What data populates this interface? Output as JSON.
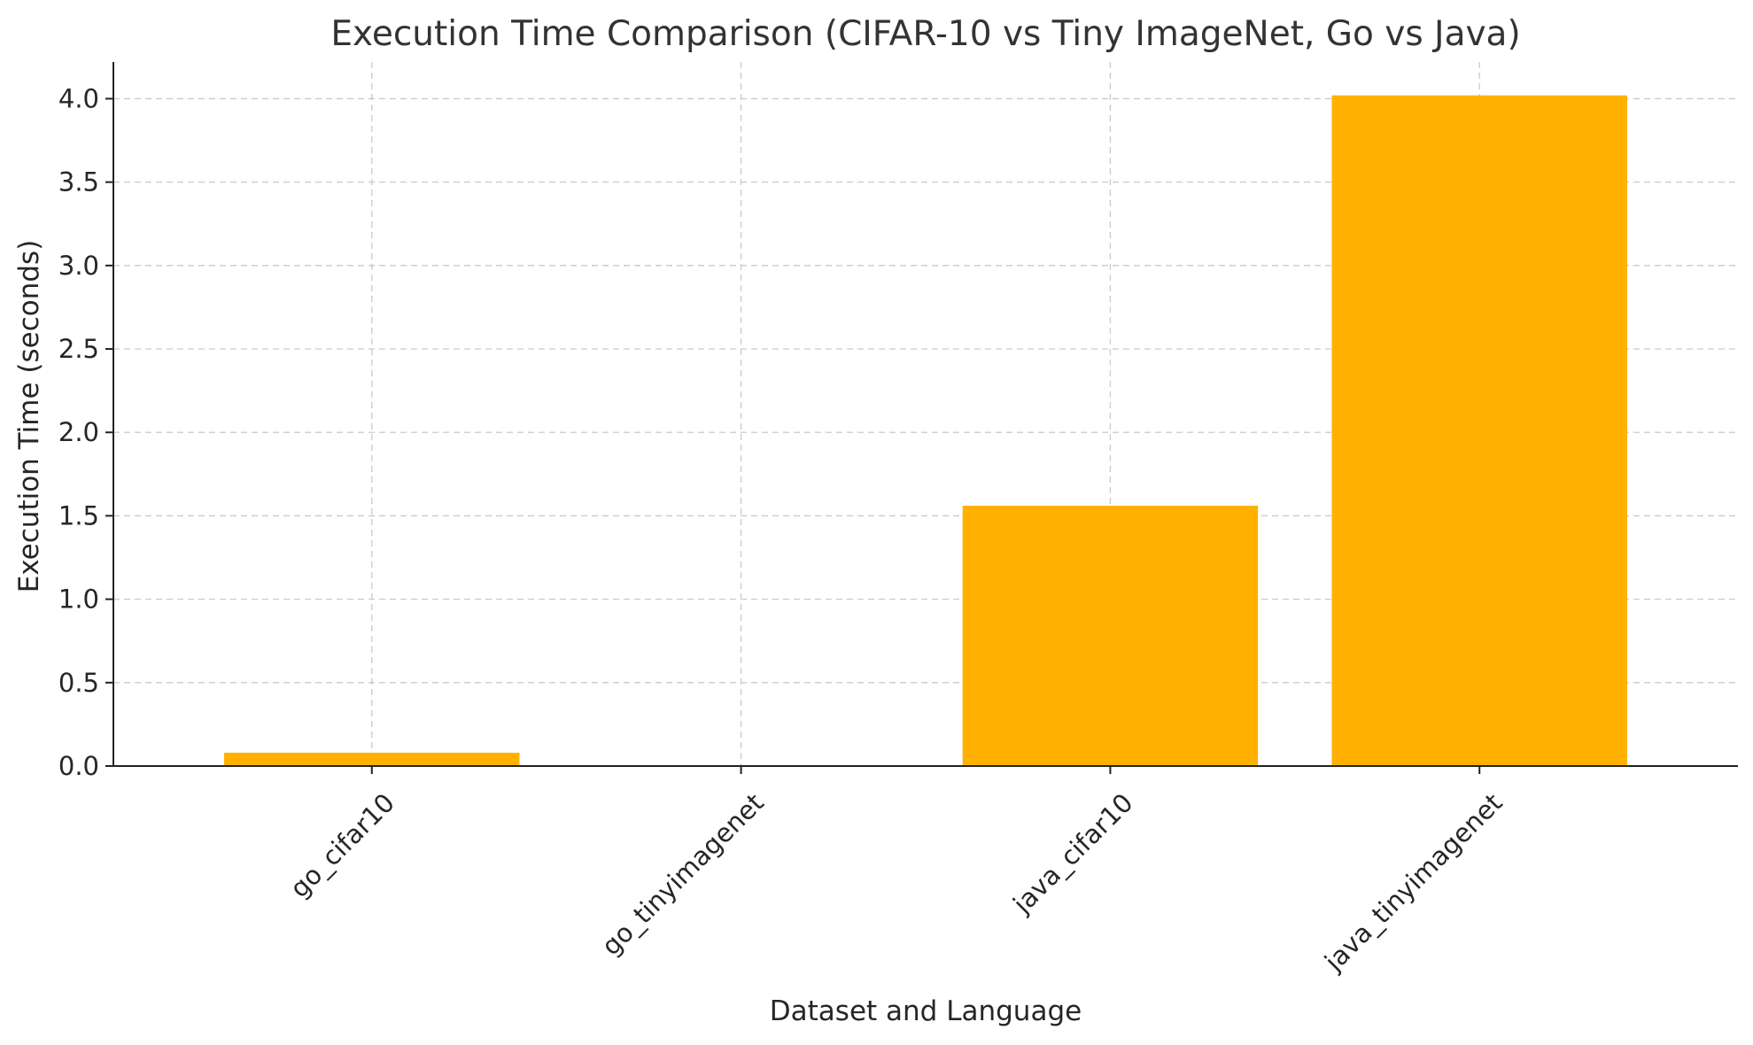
{
  "chart_data": {
    "type": "bar",
    "title": "Execution Time Comparison (CIFAR-10 vs Tiny ImageNet, Go vs Java)",
    "xlabel": "Dataset and Language",
    "ylabel": "Execution Time (seconds)",
    "categories": [
      "go_cifar10",
      "go_tinyimagenet",
      "java_cifar10",
      "java_tinyimagenet"
    ],
    "values": [
      0.08,
      0.005,
      1.56,
      4.02
    ],
    "ylim": [
      0,
      4.22
    ],
    "yticks": [
      0.0,
      0.5,
      1.0,
      1.5,
      2.0,
      2.5,
      3.0,
      3.5,
      4.0
    ],
    "ytick_labels": [
      "0.0",
      "0.5",
      "1.0",
      "1.5",
      "2.0",
      "2.5",
      "3.0",
      "3.5",
      "4.0"
    ],
    "grid": true,
    "bar_color": "#ffb000"
  }
}
